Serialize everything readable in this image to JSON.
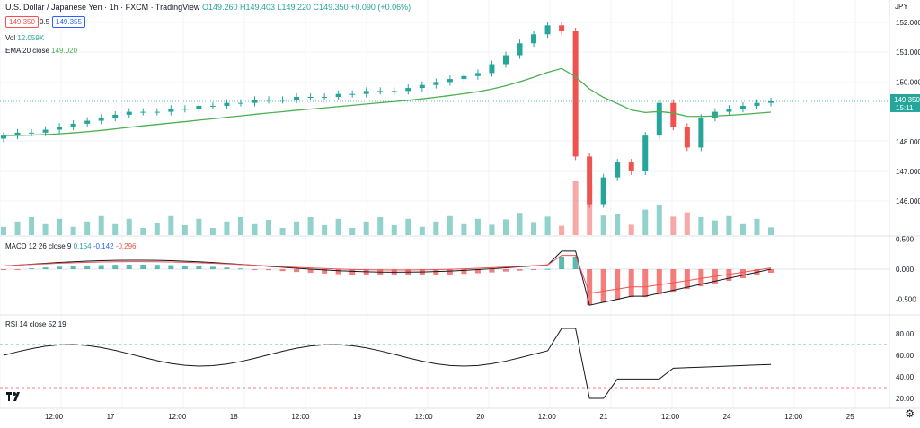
{
  "header": {
    "symbol": "U.S. Dollar / Japanese Yen · 1h · FXCM · TradingView",
    "ohlc": "O149.260 H149.403 L149.220 C149.350 +0.090 (+0.06%)",
    "bid": "149.350",
    "spread": "0.5",
    "ask": "149.355",
    "vol_label": "Vol",
    "vol_value": "12.059K",
    "ema_label": "EMA 20 close",
    "ema_value": "149.020"
  },
  "price_axis": {
    "currency": "JPY",
    "ticks": [
      "152.000",
      "151.000",
      "150.000",
      "148.000",
      "147.000",
      "146.000"
    ],
    "last_price": "149.350",
    "countdown": "15:11"
  },
  "macd": {
    "label": "MACD 12 26 close 9",
    "v1": "0.154",
    "v2": "-0.142",
    "v3": "-0.296",
    "ticks": [
      "0.500",
      "0.000",
      "-0.500"
    ]
  },
  "rsi": {
    "label": "RSI 14 close",
    "value": "52.19",
    "ticks": [
      "80.00",
      "60.00",
      "40.00",
      "20.00"
    ]
  },
  "time_axis": [
    "12:00",
    "17",
    "12:00",
    "18",
    "12:00",
    "19",
    "12:00",
    "20",
    "12:00",
    "21",
    "12:00",
    "24",
    "12:00",
    "25"
  ],
  "colors": {
    "up": "#26a69a",
    "down": "#ef5350",
    "ema": "#4caf50",
    "grid": "#f0f3fa"
  },
  "chart_data": {
    "type": "candlestick",
    "series_candles": [
      148.2,
      148.3,
      148.3,
      148.4,
      148.5,
      148.6,
      148.7,
      148.8,
      148.9,
      149.0,
      149.0,
      149.0,
      149.1,
      149.1,
      149.2,
      149.2,
      149.3,
      149.3,
      149.4,
      149.4,
      149.4,
      149.5,
      149.5,
      149.5,
      149.6,
      149.6,
      149.7,
      149.7,
      149.7,
      149.8,
      149.9,
      150.0,
      150.1,
      150.2,
      150.3,
      150.6,
      150.9,
      151.3,
      151.6,
      151.9,
      151.7,
      147.5,
      145.9,
      146.8,
      147.3,
      147.0,
      148.2,
      149.3,
      148.5,
      147.8,
      148.8,
      149.0,
      149.1,
      149.2,
      149.3,
      149.35
    ]
  }
}
